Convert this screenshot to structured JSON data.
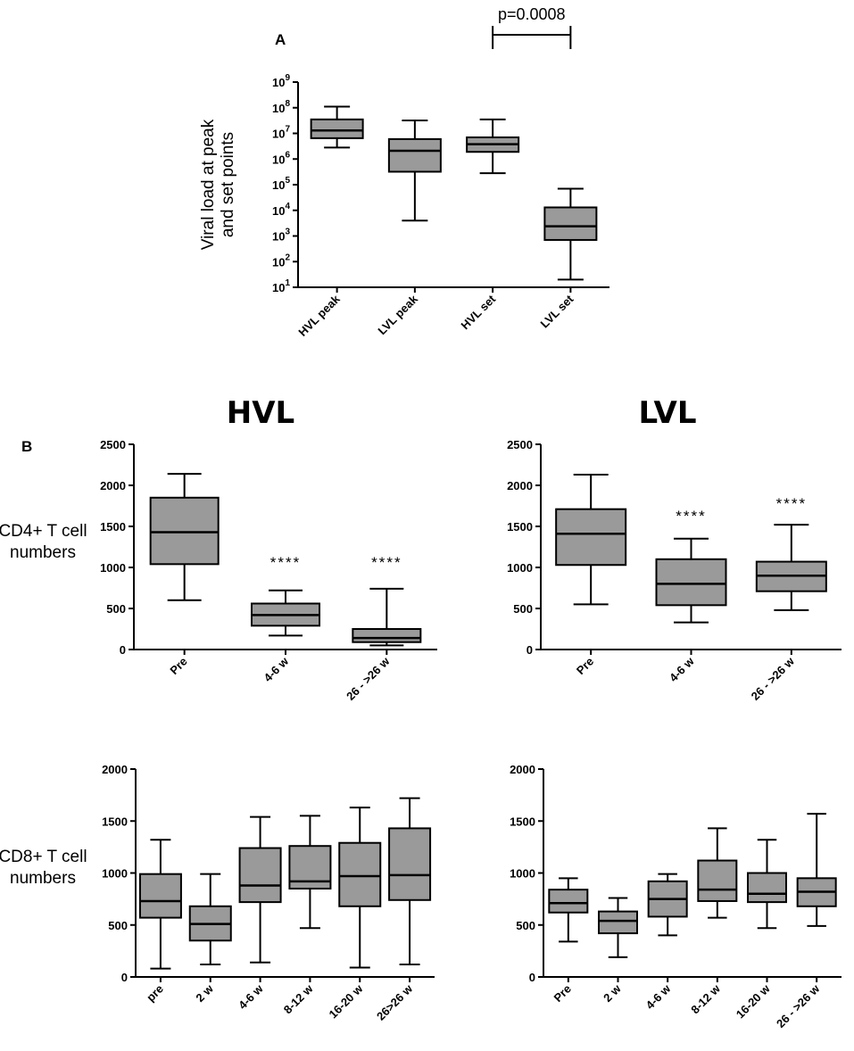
{
  "figure": {
    "panel_a_letter": "A",
    "panel_b_letter": "B",
    "hvl_title": "HVL",
    "lvl_title": "LVL"
  },
  "chart_data": [
    {
      "id": "viral_load",
      "type": "boxplot",
      "scale": "log10",
      "ylabel_lines": [
        "Viral load at peak",
        "and set points"
      ],
      "ylim": [
        10,
        1000000000
      ],
      "yticks": [
        {
          "base": "10",
          "exp": "1"
        },
        {
          "base": "10",
          "exp": "2"
        },
        {
          "base": "10",
          "exp": "3"
        },
        {
          "base": "10",
          "exp": "4"
        },
        {
          "base": "10",
          "exp": "5"
        },
        {
          "base": "10",
          "exp": "6"
        },
        {
          "base": "10",
          "exp": "7"
        },
        {
          "base": "10",
          "exp": "8"
        },
        {
          "base": "10",
          "exp": "9"
        }
      ],
      "categories": [
        "HVL peak",
        "LVL peak",
        "HVL set",
        "LVL set"
      ],
      "boxes": [
        {
          "min": 2800000,
          "q1": 6500000,
          "median": 13000000,
          "q3": 35000000,
          "max": 110000000
        },
        {
          "min": 4000,
          "q1": 320000,
          "median": 2100000,
          "q3": 6000000,
          "max": 32000000
        },
        {
          "min": 280000,
          "q1": 1900000,
          "median": 3800000,
          "q3": 7000000,
          "max": 35000000
        },
        {
          "min": 20,
          "q1": 700,
          "median": 2400,
          "q3": 13000,
          "max": 70000
        }
      ],
      "annotation": {
        "text": "p=0.0008",
        "from": "HVL set",
        "to": "LVL set"
      }
    },
    {
      "id": "cd4_hvl",
      "type": "boxplot",
      "ylabel_lines": [
        "CD4+ T cell",
        "numbers"
      ],
      "ylim": [
        0,
        2500
      ],
      "yticks": [
        "0",
        "500",
        "1000",
        "1500",
        "2000",
        "2500"
      ],
      "categories": [
        "Pre",
        "4-6 w",
        "26 - >26 w"
      ],
      "boxes": [
        {
          "min": 600,
          "q1": 1040,
          "median": 1430,
          "q3": 1850,
          "max": 2140
        },
        {
          "min": 170,
          "q1": 290,
          "median": 420,
          "q3": 560,
          "max": 720
        },
        {
          "min": 50,
          "q1": 90,
          "median": 140,
          "q3": 250,
          "max": 740
        }
      ],
      "significance": [
        "",
        "****",
        "****"
      ]
    },
    {
      "id": "cd4_lvl",
      "type": "boxplot",
      "ylim": [
        0,
        2500
      ],
      "yticks": [
        "0",
        "500",
        "1000",
        "1500",
        "2000",
        "2500"
      ],
      "categories": [
        "Pre",
        "4-6 w",
        "26 - >26 w"
      ],
      "boxes": [
        {
          "min": 550,
          "q1": 1030,
          "median": 1410,
          "q3": 1710,
          "max": 2130
        },
        {
          "min": 330,
          "q1": 540,
          "median": 800,
          "q3": 1100,
          "max": 1350
        },
        {
          "min": 480,
          "q1": 710,
          "median": 900,
          "q3": 1070,
          "max": 1520
        }
      ],
      "significance": [
        "",
        "****",
        "****"
      ]
    },
    {
      "id": "cd8_hvl",
      "type": "boxplot",
      "ylabel_lines": [
        "CD8+ T cell",
        "numbers"
      ],
      "ylim": [
        0,
        2000
      ],
      "yticks": [
        "0",
        "500",
        "1000",
        "1500",
        "2000"
      ],
      "categories": [
        "pre",
        "2 w",
        "4-6 w",
        "8-12 w",
        "16-20 w",
        "26>26 w"
      ],
      "boxes": [
        {
          "min": 80,
          "q1": 570,
          "median": 730,
          "q3": 990,
          "max": 1320
        },
        {
          "min": 120,
          "q1": 350,
          "median": 510,
          "q3": 680,
          "max": 990
        },
        {
          "min": 140,
          "q1": 720,
          "median": 880,
          "q3": 1240,
          "max": 1540
        },
        {
          "min": 470,
          "q1": 850,
          "median": 920,
          "q3": 1260,
          "max": 1550
        },
        {
          "min": 90,
          "q1": 680,
          "median": 970,
          "q3": 1290,
          "max": 1630
        },
        {
          "min": 120,
          "q1": 740,
          "median": 980,
          "q3": 1430,
          "max": 1720
        }
      ]
    },
    {
      "id": "cd8_lvl",
      "type": "boxplot",
      "ylim": [
        0,
        2000
      ],
      "yticks": [
        "0",
        "500",
        "1000",
        "1500",
        "2000"
      ],
      "categories": [
        "Pre",
        "2 w",
        "4-6 w",
        "8-12 w",
        "16-20 w",
        "26 - >26 w"
      ],
      "boxes": [
        {
          "min": 340,
          "q1": 620,
          "median": 710,
          "q3": 840,
          "max": 950
        },
        {
          "min": 190,
          "q1": 420,
          "median": 540,
          "q3": 630,
          "max": 760
        },
        {
          "min": 400,
          "q1": 580,
          "median": 750,
          "q3": 920,
          "max": 990
        },
        {
          "min": 570,
          "q1": 730,
          "median": 840,
          "q3": 1120,
          "max": 1430
        },
        {
          "min": 470,
          "q1": 720,
          "median": 800,
          "q3": 1000,
          "max": 1320
        },
        {
          "min": 490,
          "q1": 680,
          "median": 820,
          "q3": 950,
          "max": 1570
        }
      ]
    }
  ],
  "colors": {
    "box_fill": "#9a9a9a",
    "ink": "#000000"
  }
}
